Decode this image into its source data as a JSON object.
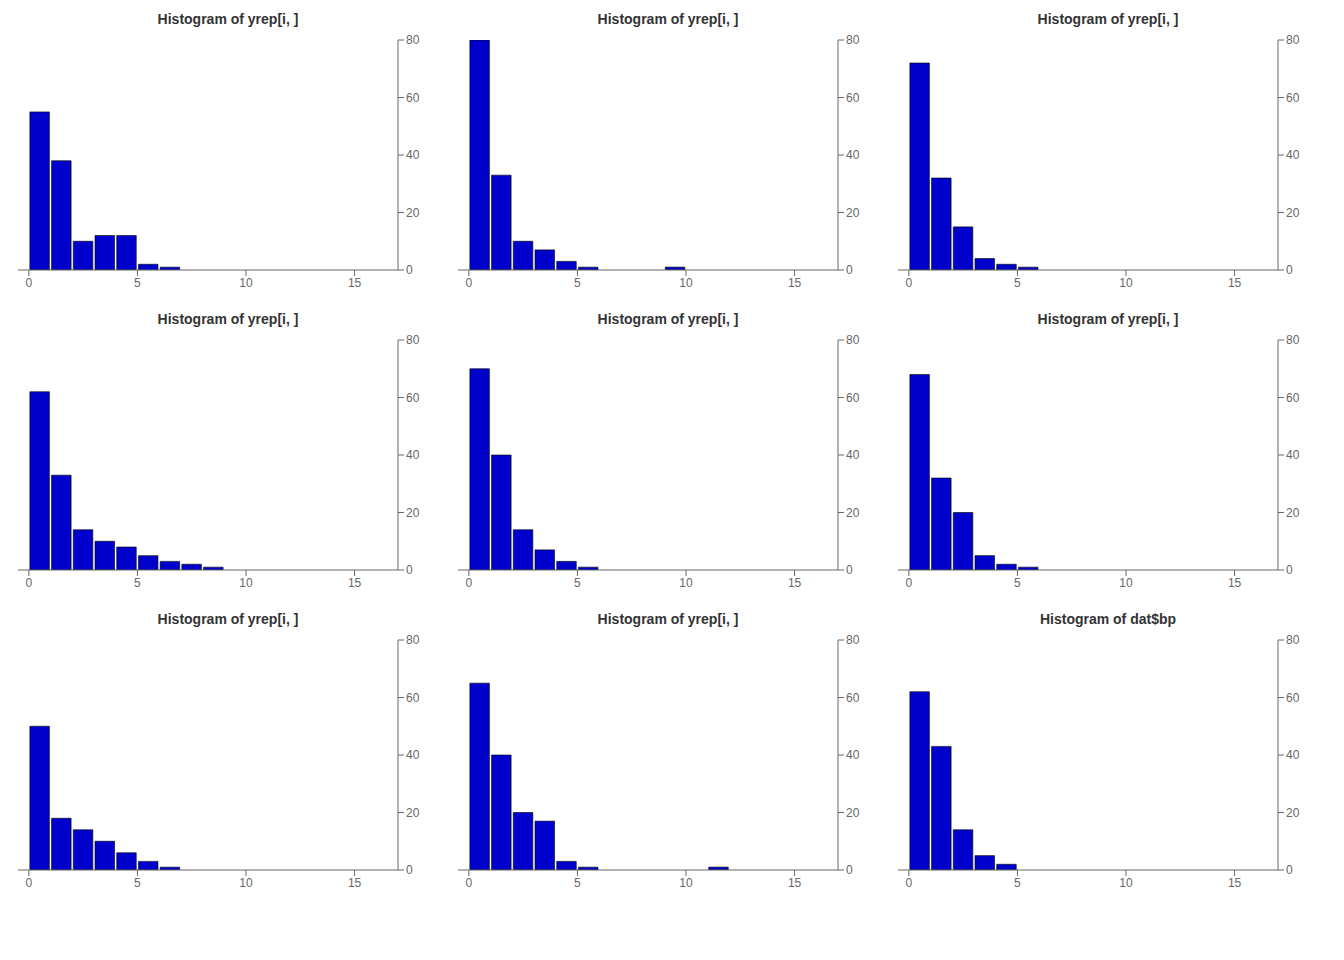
{
  "chart_data": [
    {
      "type": "histogram",
      "title": "Histogram of yrep[i, ]",
      "bins": [
        0,
        1,
        2,
        3,
        4,
        5,
        6,
        7,
        8,
        9,
        10,
        11,
        12,
        13,
        14,
        15,
        16,
        17
      ],
      "values": [
        55,
        38,
        10,
        12,
        12,
        2,
        1,
        0,
        0,
        0,
        0,
        0,
        0,
        0,
        0,
        0,
        0
      ],
      "color": "#0000CC",
      "xlim": [
        -0.5,
        17
      ],
      "ylim": [
        0,
        80
      ],
      "xticks": [
        0,
        5,
        10,
        15
      ],
      "yticks": [
        0,
        20,
        40,
        60,
        80
      ],
      "grid": false
    },
    {
      "type": "histogram",
      "title": "Histogram of yrep[i, ]",
      "bins": [
        0,
        1,
        2,
        3,
        4,
        5,
        6,
        7,
        8,
        9,
        10,
        11,
        12,
        13,
        14,
        15,
        16,
        17
      ],
      "values": [
        80,
        33,
        10,
        7,
        3,
        1,
        0,
        0,
        0,
        1,
        0,
        0,
        0,
        0,
        0,
        0,
        0
      ],
      "color": "#0000CC",
      "xlim": [
        -0.5,
        17
      ],
      "ylim": [
        0,
        80
      ],
      "xticks": [
        0,
        5,
        10,
        15
      ],
      "yticks": [
        0,
        20,
        40,
        60,
        80
      ],
      "grid": false
    },
    {
      "type": "histogram",
      "title": "Histogram of yrep[i, ]",
      "bins": [
        0,
        1,
        2,
        3,
        4,
        5,
        6,
        7,
        8,
        9,
        10,
        11,
        12,
        13,
        14,
        15,
        16,
        17
      ],
      "values": [
        72,
        32,
        15,
        4,
        2,
        1,
        0,
        0,
        0,
        0,
        0,
        0,
        0,
        0,
        0,
        0,
        0
      ],
      "color": "#0000CC",
      "xlim": [
        -0.5,
        17
      ],
      "ylim": [
        0,
        80
      ],
      "xticks": [
        0,
        5,
        10,
        15
      ],
      "yticks": [
        0,
        20,
        40,
        60,
        80
      ],
      "grid": false
    },
    {
      "type": "histogram",
      "title": "Histogram of yrep[i, ]",
      "bins": [
        0,
        1,
        2,
        3,
        4,
        5,
        6,
        7,
        8,
        9,
        10,
        11,
        12,
        13,
        14,
        15,
        16,
        17
      ],
      "values": [
        62,
        33,
        14,
        10,
        8,
        5,
        3,
        2,
        1,
        0,
        0,
        0,
        0,
        0,
        0,
        0,
        0
      ],
      "color": "#0000CC",
      "xlim": [
        -0.5,
        17
      ],
      "ylim": [
        0,
        80
      ],
      "xticks": [
        0,
        5,
        10,
        15
      ],
      "yticks": [
        0,
        20,
        40,
        60,
        80
      ],
      "grid": false
    },
    {
      "type": "histogram",
      "title": "Histogram of yrep[i, ]",
      "bins": [
        0,
        1,
        2,
        3,
        4,
        5,
        6,
        7,
        8,
        9,
        10,
        11,
        12,
        13,
        14,
        15,
        16,
        17
      ],
      "values": [
        70,
        40,
        14,
        7,
        3,
        1,
        0,
        0,
        0,
        0,
        0,
        0,
        0,
        0,
        0,
        0,
        0
      ],
      "color": "#0000CC",
      "xlim": [
        -0.5,
        17
      ],
      "ylim": [
        0,
        80
      ],
      "xticks": [
        0,
        5,
        10,
        15
      ],
      "yticks": [
        0,
        20,
        40,
        60,
        80
      ],
      "grid": false
    },
    {
      "type": "histogram",
      "title": "Histogram of yrep[i, ]",
      "bins": [
        0,
        1,
        2,
        3,
        4,
        5,
        6,
        7,
        8,
        9,
        10,
        11,
        12,
        13,
        14,
        15,
        16,
        17
      ],
      "values": [
        68,
        32,
        20,
        5,
        2,
        1,
        0,
        0,
        0,
        0,
        0,
        0,
        0,
        0,
        0,
        0,
        0
      ],
      "color": "#0000CC",
      "xlim": [
        -0.5,
        17
      ],
      "ylim": [
        0,
        80
      ],
      "xticks": [
        0,
        5,
        10,
        15
      ],
      "yticks": [
        0,
        20,
        40,
        60,
        80
      ],
      "grid": false
    },
    {
      "type": "histogram",
      "title": "Histogram of yrep[i, ]",
      "bins": [
        0,
        1,
        2,
        3,
        4,
        5,
        6,
        7,
        8,
        9,
        10,
        11,
        12,
        13,
        14,
        15,
        16,
        17
      ],
      "values": [
        50,
        18,
        14,
        10,
        6,
        3,
        1,
        0,
        0,
        0,
        0,
        0,
        0,
        0,
        0,
        0,
        0
      ],
      "color": "#0000CC",
      "xlim": [
        -0.5,
        17
      ],
      "ylim": [
        0,
        80
      ],
      "xticks": [
        0,
        5,
        10,
        15
      ],
      "yticks": [
        0,
        20,
        40,
        60,
        80
      ],
      "grid": false
    },
    {
      "type": "histogram",
      "title": "Histogram of yrep[i, ]",
      "bins": [
        0,
        1,
        2,
        3,
        4,
        5,
        6,
        7,
        8,
        9,
        10,
        11,
        12,
        13,
        14,
        15,
        16,
        17
      ],
      "values": [
        65,
        40,
        20,
        17,
        3,
        1,
        0,
        0,
        0,
        0,
        0,
        1,
        0,
        0,
        0,
        0,
        0
      ],
      "color": "#0000CC",
      "xlim": [
        -0.5,
        17
      ],
      "ylim": [
        0,
        80
      ],
      "xticks": [
        0,
        5,
        10,
        15
      ],
      "yticks": [
        0,
        20,
        40,
        60,
        80
      ],
      "grid": false
    },
    {
      "type": "histogram",
      "title": "Histogram of dat$bp",
      "bins": [
        0,
        1,
        2,
        3,
        4,
        5,
        6,
        7,
        8,
        9,
        10,
        11,
        12,
        13,
        14,
        15,
        16,
        17
      ],
      "values": [
        62,
        43,
        14,
        5,
        2,
        0,
        0,
        0,
        0,
        0,
        0,
        0,
        0,
        0,
        0,
        0,
        0
      ],
      "color": "#0000CC",
      "xlim": [
        -0.5,
        17
      ],
      "ylim": [
        0,
        80
      ],
      "xticks": [
        0,
        5,
        10,
        15
      ],
      "yticks": [
        0,
        20,
        40,
        60,
        80
      ],
      "grid": false
    }
  ]
}
